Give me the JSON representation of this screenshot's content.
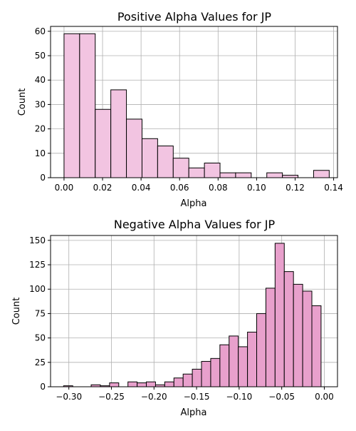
{
  "chart_data": [
    {
      "type": "bar",
      "title": "Positive Alpha Values for JP",
      "xlabel": "Alpha",
      "ylabel": "Count",
      "color": "#f2c4e1",
      "xlim": [
        -0.007,
        0.142
      ],
      "ylim": [
        0,
        62
      ],
      "xticks": [
        0.0,
        0.02,
        0.04,
        0.06,
        0.08,
        0.1,
        0.12,
        0.14
      ],
      "xtick_labels": [
        "0.00",
        "0.02",
        "0.04",
        "0.06",
        "0.08",
        "0.10",
        "0.12",
        "0.14"
      ],
      "yticks": [
        0,
        10,
        20,
        30,
        40,
        50,
        60
      ],
      "ytick_labels": [
        "0",
        "10",
        "20",
        "30",
        "40",
        "50",
        "60"
      ],
      "grid": true,
      "bin_edges": [
        0.0,
        0.0081,
        0.0162,
        0.0243,
        0.0324,
        0.0405,
        0.0486,
        0.0567,
        0.0648,
        0.0729,
        0.081,
        0.0891,
        0.0972,
        0.1053,
        0.1134,
        0.1215,
        0.1296,
        0.1377
      ],
      "values": [
        59,
        59,
        28,
        36,
        24,
        16,
        13,
        8,
        4,
        6,
        2,
        2,
        0,
        2,
        1,
        0,
        3
      ]
    },
    {
      "type": "bar",
      "title": "Negative Alpha Values for JP",
      "xlabel": "Alpha",
      "ylabel": "Count",
      "color": "#e8a0cc",
      "xlim": [
        -0.3215,
        0.0155
      ],
      "ylim": [
        0,
        155
      ],
      "xticks": [
        -0.3,
        -0.25,
        -0.2,
        -0.15,
        -0.1,
        -0.05,
        0.0
      ],
      "xtick_labels": [
        "−0.30",
        "−0.25",
        "−0.20",
        "−0.15",
        "−0.10",
        "−0.05",
        "0.00"
      ],
      "yticks": [
        0,
        25,
        50,
        75,
        100,
        125,
        150
      ],
      "ytick_labels": [
        "0",
        "25",
        "50",
        "75",
        "100",
        "125",
        "150"
      ],
      "grid": true,
      "bin_edges": [
        -0.3062,
        -0.2954,
        -0.2846,
        -0.2738,
        -0.263,
        -0.2522,
        -0.2414,
        -0.2306,
        -0.2198,
        -0.209,
        -0.1982,
        -0.1874,
        -0.1766,
        -0.1658,
        -0.155,
        -0.1442,
        -0.1334,
        -0.1226,
        -0.1118,
        -0.101,
        -0.0902,
        -0.0794,
        -0.0686,
        -0.0578,
        -0.047,
        -0.0362,
        -0.0254,
        -0.0146,
        -0.0038,
        0.0
      ],
      "values": [
        1,
        0,
        0,
        2,
        1,
        4,
        0,
        5,
        4,
        5,
        2,
        5,
        9,
        13,
        18,
        26,
        29,
        43,
        52,
        41,
        56,
        75,
        101,
        147,
        118,
        105,
        98,
        83,
        0
      ]
    }
  ]
}
